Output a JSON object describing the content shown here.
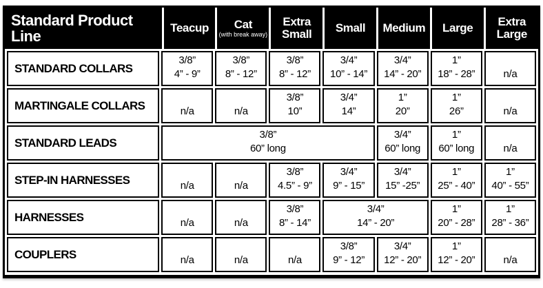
{
  "colors": {
    "border": "#000000",
    "header_bg": "#000000",
    "header_text": "#ffffff",
    "cell_bg": "#ffffff",
    "cell_text": "#000000"
  },
  "table": {
    "title": "Standard Product Line",
    "columns": [
      {
        "label": "Teacup",
        "sub": ""
      },
      {
        "label": "Cat",
        "sub": "(with break away)"
      },
      {
        "label": "Extra Small",
        "sub": ""
      },
      {
        "label": "Small",
        "sub": ""
      },
      {
        "label": "Medium",
        "sub": ""
      },
      {
        "label": "Large",
        "sub": ""
      },
      {
        "label": "Extra Large",
        "sub": ""
      }
    ],
    "rows": [
      {
        "label": "STANDARD COLLARS",
        "cells": [
          {
            "span": 1,
            "lines": [
              "3/8”",
              "4” - 9”"
            ]
          },
          {
            "span": 1,
            "lines": [
              "3/8”",
              "8” - 12”"
            ]
          },
          {
            "span": 1,
            "lines": [
              "3/8”",
              "8” - 12”"
            ]
          },
          {
            "span": 1,
            "lines": [
              "3/4”",
              "10” - 14”"
            ]
          },
          {
            "span": 1,
            "lines": [
              "3/4”",
              "14” - 20”"
            ]
          },
          {
            "span": 1,
            "lines": [
              "1”",
              "18” - 28”"
            ]
          },
          {
            "span": 1,
            "lines": [
              "n/a"
            ]
          }
        ]
      },
      {
        "label": "MARTINGALE COLLARS",
        "cells": [
          {
            "span": 1,
            "lines": [
              "n/a"
            ]
          },
          {
            "span": 1,
            "lines": [
              "n/a"
            ]
          },
          {
            "span": 1,
            "lines": [
              "3/8”",
              "10”"
            ]
          },
          {
            "span": 1,
            "lines": [
              "3/4”",
              "14”"
            ]
          },
          {
            "span": 1,
            "lines": [
              "1”",
              "20”"
            ]
          },
          {
            "span": 1,
            "lines": [
              "1”",
              "26”"
            ]
          },
          {
            "span": 1,
            "lines": [
              "n/a"
            ]
          }
        ]
      },
      {
        "label": "STANDARD LEADS",
        "cells": [
          {
            "span": 4,
            "lines": [
              "3/8”",
              "60” long"
            ]
          },
          {
            "span": 1,
            "lines": [
              "3/4”",
              "60” long"
            ]
          },
          {
            "span": 1,
            "lines": [
              "1”",
              "60” long"
            ]
          },
          {
            "span": 1,
            "lines": [
              "n/a"
            ]
          }
        ]
      },
      {
        "label": "STEP-IN HARNESSES",
        "cells": [
          {
            "span": 1,
            "lines": [
              "n/a"
            ]
          },
          {
            "span": 1,
            "lines": [
              "n/a"
            ]
          },
          {
            "span": 1,
            "lines": [
              "3/8”",
              "4.5” - 9”"
            ]
          },
          {
            "span": 1,
            "lines": [
              "3/4”",
              "9” - 15”"
            ]
          },
          {
            "span": 1,
            "lines": [
              "3/4”",
              "15” -25”"
            ]
          },
          {
            "span": 1,
            "lines": [
              "1”",
              "25” - 40”"
            ]
          },
          {
            "span": 1,
            "lines": [
              "1”",
              "40” - 55”"
            ]
          }
        ]
      },
      {
        "label": "HARNESSES",
        "cells": [
          {
            "span": 1,
            "lines": [
              "n/a"
            ]
          },
          {
            "span": 1,
            "lines": [
              "n/a"
            ]
          },
          {
            "span": 1,
            "lines": [
              "3/8”",
              "8” - 14”"
            ]
          },
          {
            "span": 2,
            "lines": [
              "3/4”",
              "14” - 20”"
            ]
          },
          {
            "span": 1,
            "lines": [
              "1”",
              "20” - 28”"
            ]
          },
          {
            "span": 1,
            "lines": [
              "1”",
              "28” - 36”"
            ]
          }
        ]
      },
      {
        "label": "COUPLERS",
        "cells": [
          {
            "span": 1,
            "lines": [
              "n/a"
            ]
          },
          {
            "span": 1,
            "lines": [
              "n/a"
            ]
          },
          {
            "span": 1,
            "lines": [
              "n/a"
            ]
          },
          {
            "span": 1,
            "lines": [
              "3/8”",
              "9” - 12”"
            ]
          },
          {
            "span": 1,
            "lines": [
              "3/4”",
              "12” - 20”"
            ]
          },
          {
            "span": 1,
            "lines": [
              "1”",
              "12” - 20”"
            ]
          },
          {
            "span": 1,
            "lines": [
              "n/a"
            ]
          }
        ]
      }
    ]
  }
}
